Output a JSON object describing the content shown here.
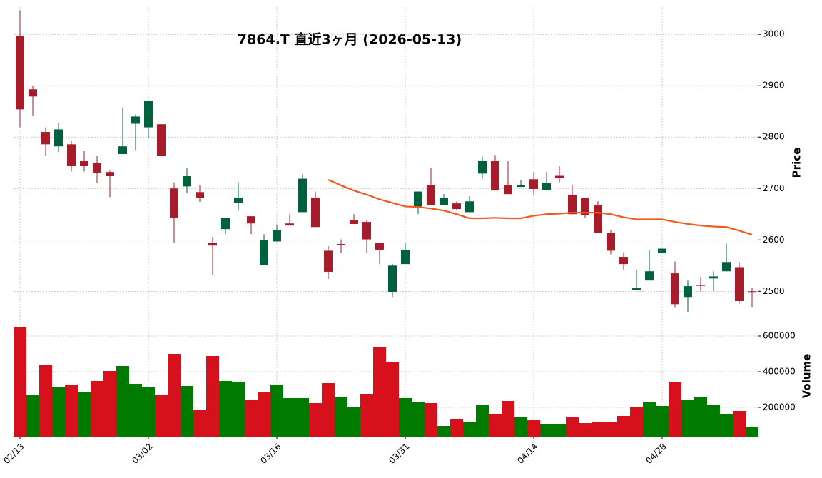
{
  "chart_data": [
    {
      "type": "candlestick",
      "title": "7864.T  直近3ヶ月  (2026-05-13)",
      "ylabel": "Price",
      "up_color": "#00613d",
      "down_color": "#a61c2a",
      "open": [
        2997,
        2893,
        2810,
        2782,
        2786,
        2754,
        2749,
        2732,
        2767,
        2826,
        2819,
        2825,
        2700,
        2704,
        2693,
        2594,
        2621,
        2672,
        2646,
        2551,
        2597,
        2632,
        2654,
        2682,
        2579,
        2592,
        2639,
        2635,
        2594,
        2499,
        2553,
        2665,
        2707,
        2667,
        2671,
        2654,
        2729,
        2754,
        2707,
        2703,
        2718,
        2697,
        2726,
        2688,
        2682,
        2667,
        2613,
        2567,
        2503,
        2521,
        2574,
        2535,
        2489,
        2512,
        2525,
        2539,
        2547,
        2500
      ],
      "high": [
        3047,
        2900,
        2819,
        2828,
        2792,
        2774,
        2764,
        2736,
        2858,
        2844,
        2871,
        2825,
        2712,
        2739,
        2706,
        2606,
        2643,
        2712,
        2646,
        2611,
        2629,
        2650,
        2728,
        2694,
        2588,
        2601,
        2650,
        2639,
        2594,
        2553,
        2594,
        2694,
        2740,
        2689,
        2675,
        2685,
        2762,
        2765,
        2754,
        2717,
        2732,
        2732,
        2744,
        2706,
        2682,
        2675,
        2619,
        2576,
        2542,
        2581,
        2583,
        2558,
        2521,
        2528,
        2539,
        2593,
        2557,
        2506
      ],
      "low": [
        2819,
        2842,
        2764,
        2771,
        2733,
        2733,
        2711,
        2683,
        2767,
        2775,
        2799,
        2764,
        2594,
        2692,
        2674,
        2531,
        2611,
        2657,
        2611,
        2551,
        2597,
        2628,
        2654,
        2625,
        2524,
        2574,
        2631,
        2574,
        2553,
        2489,
        2553,
        2650,
        2667,
        2667,
        2657,
        2654,
        2719,
        2696,
        2689,
        2703,
        2688,
        2697,
        2712,
        2650,
        2642,
        2613,
        2572,
        2542,
        2503,
        2521,
        2574,
        2468,
        2460,
        2500,
        2500,
        2539,
        2476,
        2469
      ],
      "close": [
        2854,
        2879,
        2786,
        2815,
        2744,
        2744,
        2731,
        2725,
        2782,
        2840,
        2871,
        2764,
        2643,
        2725,
        2681,
        2589,
        2643,
        2682,
        2632,
        2599,
        2619,
        2628,
        2719,
        2625,
        2538,
        2590,
        2631,
        2601,
        2581,
        2550,
        2581,
        2694,
        2667,
        2682,
        2660,
        2675,
        2754,
        2696,
        2689,
        2706,
        2699,
        2711,
        2721,
        2650,
        2649,
        2613,
        2579,
        2553,
        2507,
        2539,
        2583,
        2475,
        2510,
        2511,
        2529,
        2557,
        2481,
        2499
      ],
      "ma": {
        "color": "#f05a1a",
        "values": [
          null,
          null,
          null,
          null,
          null,
          null,
          null,
          null,
          null,
          null,
          null,
          null,
          null,
          null,
          null,
          null,
          null,
          null,
          null,
          null,
          null,
          null,
          null,
          null,
          2717,
          2706,
          2696,
          2688,
          2679,
          2672,
          2665,
          2664,
          2661,
          2657,
          2650,
          2642,
          2642,
          2643,
          2642,
          2642,
          2647,
          2650,
          2651,
          2653,
          2653,
          2653,
          2650,
          2644,
          2640,
          2640,
          2640,
          2635,
          2631,
          2628,
          2626,
          2625,
          2618,
          2610
        ]
      },
      "ylim": [
        2456,
        3053
      ],
      "yticks": [
        2500,
        2600,
        2700,
        2800,
        2900,
        3000
      ],
      "grid": true
    },
    {
      "type": "bar",
      "ylabel": "Volume",
      "categories": [
        "02/13",
        null,
        null,
        null,
        null,
        null,
        null,
        null,
        null,
        null,
        "03/02",
        null,
        null,
        null,
        null,
        null,
        null,
        null,
        null,
        null,
        "03/16",
        null,
        null,
        null,
        null,
        null,
        null,
        null,
        null,
        null,
        "03/31",
        null,
        null,
        null,
        null,
        null,
        null,
        null,
        null,
        null,
        "04/14",
        null,
        null,
        null,
        null,
        null,
        null,
        null,
        null,
        null,
        "04/28",
        null,
        null,
        null,
        null,
        null,
        null,
        null
      ],
      "values": [
        652000,
        272000,
        436000,
        316000,
        328000,
        284000,
        348000,
        404000,
        432000,
        332000,
        316000,
        272000,
        500000,
        320000,
        184000,
        488000,
        348000,
        344000,
        240000,
        288000,
        328000,
        252000,
        252000,
        224000,
        336000,
        256000,
        200000,
        276000,
        536000,
        452000,
        252000,
        228000,
        224000,
        96000,
        132000,
        120000,
        216000,
        164000,
        236000,
        148000,
        128000,
        104000,
        104000,
        144000,
        112000,
        120000,
        116000,
        152000,
        204000,
        228000,
        208000,
        340000,
        244000,
        260000,
        216000,
        164000,
        180000,
        88000
      ],
      "colors": [
        "#d7111b",
        "#007a00",
        "#d7111b",
        "#007a00",
        "#d7111b",
        "#007a00",
        "#d7111b",
        "#d7111b",
        "#007a00",
        "#007a00",
        "#007a00",
        "#d7111b",
        "#d7111b",
        "#007a00",
        "#d7111b",
        "#d7111b",
        "#007a00",
        "#007a00",
        "#d7111b",
        "#d7111b",
        "#007a00",
        "#007a00",
        "#007a00",
        "#d7111b",
        "#d7111b",
        "#007a00",
        "#007a00",
        "#d7111b",
        "#d7111b",
        "#d7111b",
        "#007a00",
        "#007a00",
        "#d7111b",
        "#007a00",
        "#d7111b",
        "#007a00",
        "#007a00",
        "#d7111b",
        "#d7111b",
        "#007a00",
        "#d7111b",
        "#007a00",
        "#007a00",
        "#d7111b",
        "#d7111b",
        "#d7111b",
        "#d7111b",
        "#d7111b",
        "#d7111b",
        "#007a00",
        "#007a00",
        "#d7111b",
        "#007a00",
        "#007a00",
        "#007a00",
        "#007a00",
        "#d7111b",
        "#007a00"
      ],
      "ylim": [
        36000,
        696000
      ],
      "yticks": [
        200000,
        400000,
        600000
      ],
      "grid": true
    }
  ]
}
